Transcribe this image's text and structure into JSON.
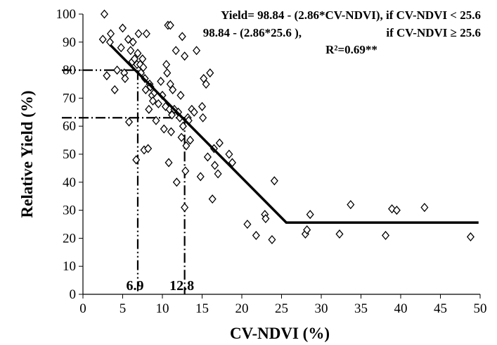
{
  "chart_data": {
    "type": "scatter",
    "title": "",
    "xlabel": "CV-NDVI (%)",
    "ylabel": "Relative Yield (%)",
    "xlim": [
      0,
      50
    ],
    "ylim": [
      0,
      100
    ],
    "x_ticks": [
      0,
      5,
      10,
      15,
      20,
      25,
      30,
      35,
      40,
      45,
      50
    ],
    "y_ticks": [
      0,
      10,
      20,
      30,
      40,
      50,
      60,
      70,
      80,
      90,
      100
    ],
    "grid": false,
    "legend": "none",
    "marker": "open-diamond",
    "points": [
      {
        "x": 2.5,
        "y": 91
      },
      {
        "x": 2.7,
        "y": 100
      },
      {
        "x": 3.0,
        "y": 78
      },
      {
        "x": 3.4,
        "y": 90
      },
      {
        "x": 3.5,
        "y": 93
      },
      {
        "x": 4.0,
        "y": 73
      },
      {
        "x": 4.3,
        "y": 80
      },
      {
        "x": 4.8,
        "y": 88
      },
      {
        "x": 5.0,
        "y": 95
      },
      {
        "x": 5.2,
        "y": 79
      },
      {
        "x": 5.3,
        "y": 77
      },
      {
        "x": 5.7,
        "y": 91
      },
      {
        "x": 5.8,
        "y": 61.5
      },
      {
        "x": 6.0,
        "y": 87
      },
      {
        "x": 6.2,
        "y": 83
      },
      {
        "x": 6.3,
        "y": 90
      },
      {
        "x": 6.5,
        "y": 84
      },
      {
        "x": 6.7,
        "y": 48
      },
      {
        "x": 6.8,
        "y": 82
      },
      {
        "x": 6.9,
        "y": 86
      },
      {
        "x": 7.0,
        "y": 93
      },
      {
        "x": 7.2,
        "y": 82
      },
      {
        "x": 7.3,
        "y": 79
      },
      {
        "x": 7.5,
        "y": 84
      },
      {
        "x": 7.6,
        "y": 81
      },
      {
        "x": 7.7,
        "y": 51.5
      },
      {
        "x": 7.8,
        "y": 77
      },
      {
        "x": 7.9,
        "y": 73
      },
      {
        "x": 8.0,
        "y": 93
      },
      {
        "x": 8.2,
        "y": 52
      },
      {
        "x": 8.3,
        "y": 66
      },
      {
        "x": 8.4,
        "y": 75
      },
      {
        "x": 8.5,
        "y": 74
      },
      {
        "x": 8.7,
        "y": 71
      },
      {
        "x": 8.8,
        "y": 69
      },
      {
        "x": 9.0,
        "y": 72
      },
      {
        "x": 9.2,
        "y": 62
      },
      {
        "x": 9.5,
        "y": 68
      },
      {
        "x": 9.8,
        "y": 76
      },
      {
        "x": 10.0,
        "y": 71
      },
      {
        "x": 10.2,
        "y": 59
      },
      {
        "x": 10.4,
        "y": 67
      },
      {
        "x": 10.5,
        "y": 82
      },
      {
        "x": 10.6,
        "y": 79
      },
      {
        "x": 10.7,
        "y": 96
      },
      {
        "x": 10.8,
        "y": 47
      },
      {
        "x": 10.9,
        "y": 66
      },
      {
        "x": 11.0,
        "y": 75
      },
      {
        "x": 11.0,
        "y": 96
      },
      {
        "x": 11.1,
        "y": 58
      },
      {
        "x": 11.2,
        "y": 64
      },
      {
        "x": 11.3,
        "y": 73
      },
      {
        "x": 11.5,
        "y": 66
      },
      {
        "x": 11.7,
        "y": 87
      },
      {
        "x": 11.8,
        "y": 40
      },
      {
        "x": 12.0,
        "y": 65
      },
      {
        "x": 12.2,
        "y": 63
      },
      {
        "x": 12.3,
        "y": 71
      },
      {
        "x": 12.4,
        "y": 56
      },
      {
        "x": 12.5,
        "y": 92
      },
      {
        "x": 12.6,
        "y": 60
      },
      {
        "x": 12.8,
        "y": 85
      },
      {
        "x": 12.9,
        "y": 44
      },
      {
        "x": 13.0,
        "y": 53
      },
      {
        "x": 12.8,
        "y": 31
      },
      {
        "x": 13.2,
        "y": 63
      },
      {
        "x": 13.3,
        "y": 62
      },
      {
        "x": 13.5,
        "y": 55
      },
      {
        "x": 13.7,
        "y": 66
      },
      {
        "x": 14.0,
        "y": 65
      },
      {
        "x": 14.3,
        "y": 87
      },
      {
        "x": 14.8,
        "y": 42
      },
      {
        "x": 15.0,
        "y": 67
      },
      {
        "x": 15.1,
        "y": 63
      },
      {
        "x": 15.2,
        "y": 77
      },
      {
        "x": 15.5,
        "y": 75
      },
      {
        "x": 15.7,
        "y": 49
      },
      {
        "x": 16.0,
        "y": 79
      },
      {
        "x": 16.5,
        "y": 52
      },
      {
        "x": 16.6,
        "y": 46
      },
      {
        "x": 16.3,
        "y": 34
      },
      {
        "x": 17.0,
        "y": 43
      },
      {
        "x": 17.2,
        "y": 54
      },
      {
        "x": 18.4,
        "y": 50
      },
      {
        "x": 18.8,
        "y": 47
      },
      {
        "x": 20.7,
        "y": 25
      },
      {
        "x": 21.8,
        "y": 21
      },
      {
        "x": 22.9,
        "y": 28.5
      },
      {
        "x": 23.0,
        "y": 27
      },
      {
        "x": 23.8,
        "y": 19.5
      },
      {
        "x": 24.1,
        "y": 40.5
      },
      {
        "x": 28.0,
        "y": 21.5
      },
      {
        "x": 28.2,
        "y": 23
      },
      {
        "x": 28.6,
        "y": 28.5
      },
      {
        "x": 32.3,
        "y": 21.5
      },
      {
        "x": 33.7,
        "y": 32
      },
      {
        "x": 38.1,
        "y": 21
      },
      {
        "x": 38.9,
        "y": 30.5
      },
      {
        "x": 39.5,
        "y": 30
      },
      {
        "x": 43.0,
        "y": 31
      },
      {
        "x": 48.8,
        "y": 20.5
      }
    ],
    "fit_line": {
      "x": [
        3.5,
        25.6,
        49.8
      ],
      "y": [
        88.8,
        25.6,
        25.6
      ]
    },
    "guide_lines": [
      {
        "x": 6.9,
        "y": 80,
        "label": "6.9",
        "style": "dash-dot-dot"
      },
      {
        "x": 12.8,
        "y": 63,
        "label": "12.8",
        "style": "dash-dot"
      }
    ],
    "annotation": {
      "line1": "Yield= 98.84 - (2.86*CV-NDVI), if CV-NDVI < 25.6",
      "line2a": "98.84 - (2.86*25.6 ),",
      "line2b": "if CV-NDVI ≥ 25.6",
      "line3": "R²=0.69**"
    }
  }
}
